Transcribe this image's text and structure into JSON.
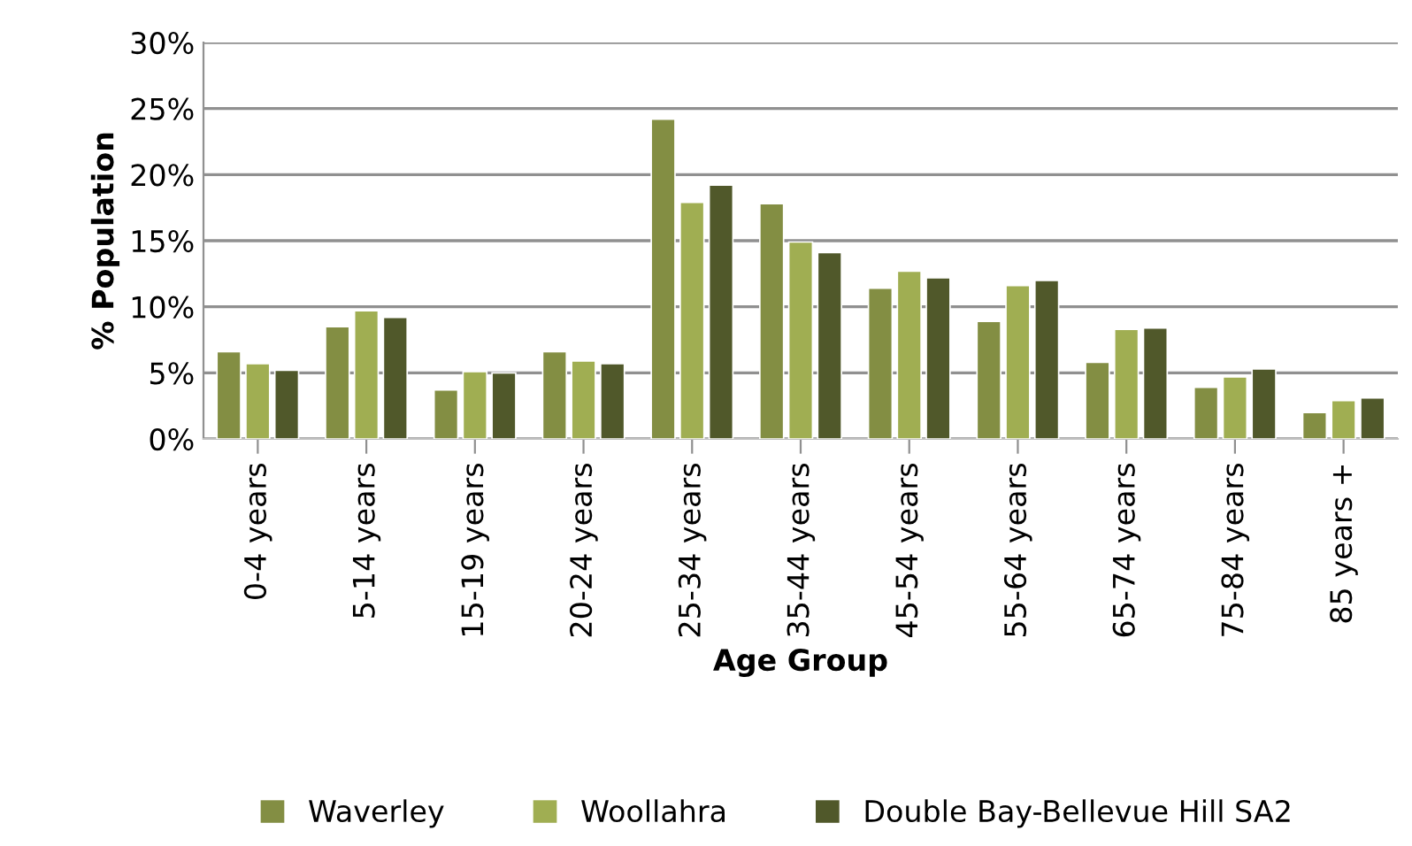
{
  "chart_data": {
    "type": "bar",
    "xlabel": "Age Group",
    "ylabel": "% Population",
    "categories": [
      "0-4 years",
      "5-14 years",
      "15-19 years",
      "20-24 years",
      "25-34 years",
      "35-44 years",
      "45-54 years",
      "55-64 years",
      "65-74 years",
      "75-84 years",
      "85 years +"
    ],
    "series": [
      {
        "name": "Waverley",
        "color": "#838e43",
        "values": [
          6.6,
          8.5,
          3.7,
          6.6,
          24.2,
          17.8,
          11.4,
          8.9,
          5.8,
          3.9,
          2.0
        ]
      },
      {
        "name": "Woollahra",
        "color": "#a0ae52",
        "values": [
          5.7,
          9.7,
          5.1,
          5.9,
          17.9,
          14.9,
          12.7,
          11.6,
          8.3,
          4.7,
          2.9
        ]
      },
      {
        "name": "Double Bay-Bellevue Hill SA2",
        "color": "#50582a",
        "values": [
          5.2,
          9.2,
          5.0,
          5.7,
          19.2,
          14.1,
          12.2,
          12.0,
          8.4,
          5.3,
          3.1
        ]
      }
    ],
    "ylim": [
      0,
      30
    ],
    "yticks": [
      {
        "value": 0,
        "label": "0%"
      },
      {
        "value": 5,
        "label": "5%"
      },
      {
        "value": 10,
        "label": "10%"
      },
      {
        "value": 15,
        "label": "15%"
      },
      {
        "value": 20,
        "label": "20%"
      },
      {
        "value": 25,
        "label": "25%"
      },
      {
        "value": 30,
        "label": "30%"
      }
    ],
    "grid": "y",
    "legend": "bottom"
  }
}
